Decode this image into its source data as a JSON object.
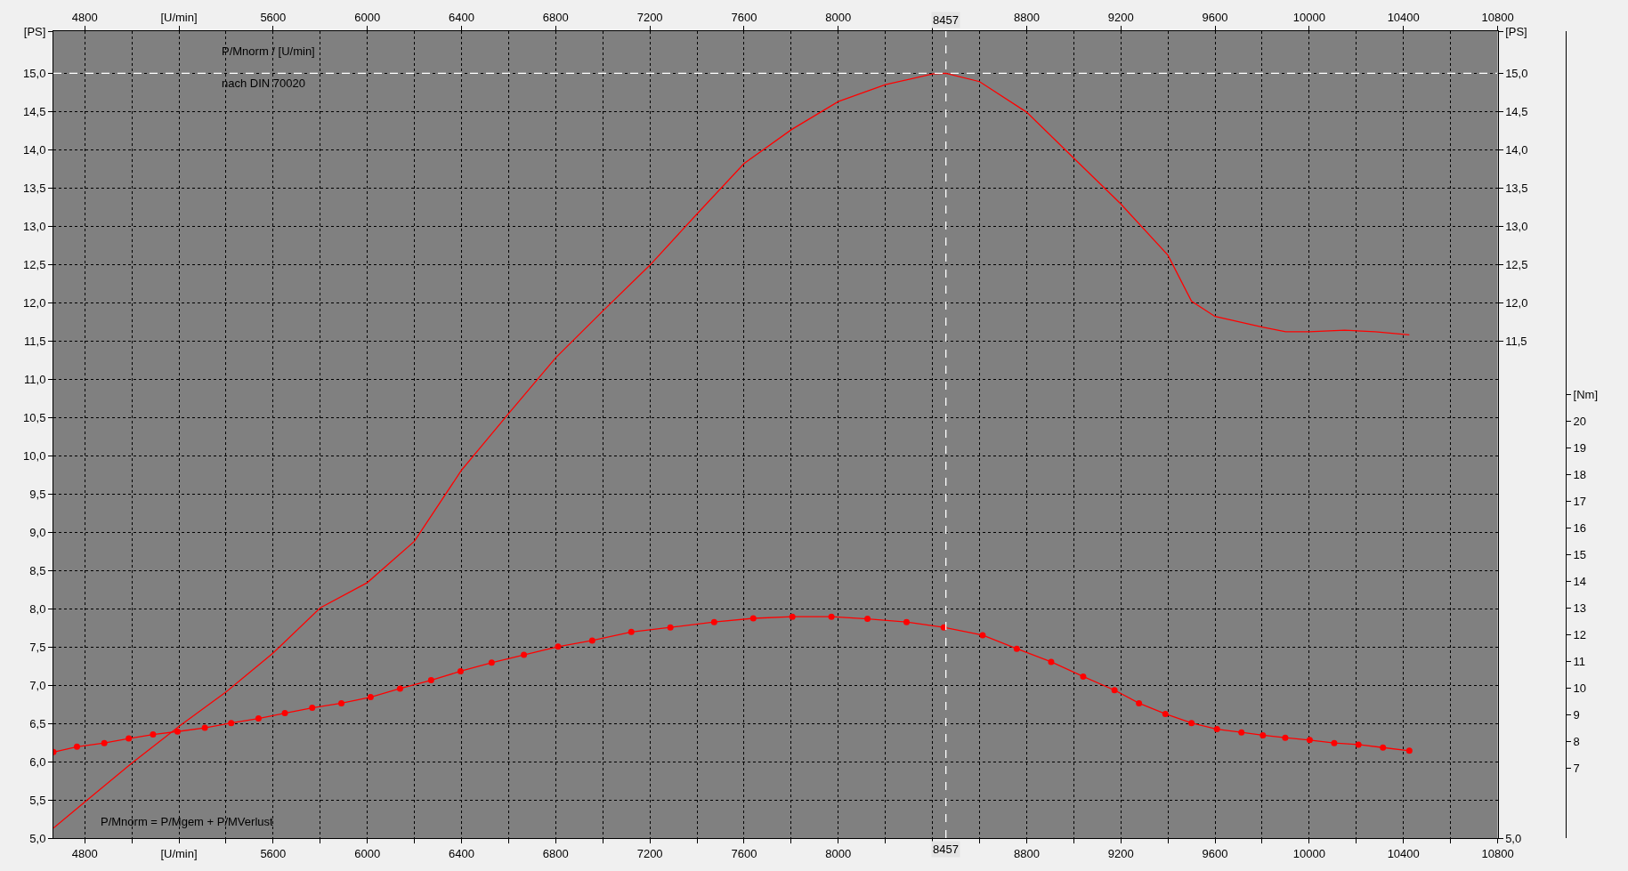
{
  "chart_data": {
    "type": "line",
    "xlim": [
      4667,
      10800
    ],
    "xticks": [
      4800,
      {
        "value": 5000,
        "label": null
      },
      {
        "value": 5200,
        "label": "[U/min]"
      },
      {
        "value": 5400,
        "label": null
      },
      5600,
      {
        "value": 5800,
        "label": null
      },
      6000,
      {
        "value": 6200,
        "label": null
      },
      6400,
      {
        "value": 6600,
        "label": null
      },
      6800,
      {
        "value": 7000,
        "label": null
      },
      7200,
      {
        "value": 7400,
        "label": null
      },
      7600,
      {
        "value": 7800,
        "label": null
      },
      8000,
      {
        "value": 8200,
        "label": null
      },
      {
        "value": 8400,
        "label": null
      },
      {
        "value": 8600,
        "label": null
      },
      8800,
      {
        "value": 9000,
        "label": null
      },
      9200,
      {
        "value": 9400,
        "label": null
      },
      9600,
      {
        "value": 9800,
        "label": null
      },
      10000,
      {
        "value": 10200,
        "label": null
      },
      10400,
      {
        "value": 10600,
        "label": null
      },
      10800
    ],
    "x2lim": [
      4667,
      10800
    ],
    "x2ticks": [
      4800,
      {
        "value": 5200,
        "label": "[U/min]"
      },
      5600,
      6000,
      6400,
      6800,
      7200,
      7600,
      8000,
      {
        "value": 8400,
        "label": null
      },
      8800,
      9200,
      9600,
      10000,
      10400,
      10800
    ],
    "ylim": [
      5,
      15.55
    ],
    "yticks": [
      {
        "value": 5,
        "label": "5,0"
      },
      {
        "value": 5.5,
        "label": "5,5"
      },
      {
        "value": 6,
        "label": "6,0"
      },
      {
        "value": 6.5,
        "label": "6,5"
      },
      {
        "value": 7,
        "label": "7,0"
      },
      {
        "value": 7.5,
        "label": "7,5"
      },
      {
        "value": 8,
        "label": "8,0"
      },
      {
        "value": 8.5,
        "label": "8,5"
      },
      {
        "value": 9,
        "label": "9,0"
      },
      {
        "value": 9.5,
        "label": "9,5"
      },
      {
        "value": 10,
        "label": "10,0"
      },
      {
        "value": 10.5,
        "label": "10,5"
      },
      {
        "value": 11,
        "label": "11,0"
      },
      {
        "value": 11.5,
        "label": "11,5"
      },
      {
        "value": 12,
        "label": "12,0"
      },
      {
        "value": 12.5,
        "label": "12,5"
      },
      {
        "value": 13,
        "label": "13,0"
      },
      {
        "value": 13.5,
        "label": "13,5"
      },
      {
        "value": 14,
        "label": "14,0"
      },
      {
        "value": 14.5,
        "label": "14,5"
      },
      {
        "value": 15,
        "label": "15,0"
      },
      {
        "value": 15.55,
        "label": "[PS]"
      }
    ],
    "y2lim": [
      5,
      15.55
    ],
    "y2ticks": [
      {
        "value": 5,
        "label": "5,0"
      },
      {
        "value": 11.5,
        "label": "11,5"
      },
      {
        "value": 12,
        "label": "12,0"
      },
      {
        "value": 12.5,
        "label": "12,5"
      },
      {
        "value": 13,
        "label": "13,0"
      },
      {
        "value": 13.5,
        "label": "13,5"
      },
      {
        "value": 14,
        "label": "14,0"
      },
      {
        "value": 14.5,
        "label": "14,5"
      },
      {
        "value": 15,
        "label": "15,0"
      },
      {
        "value": 15.55,
        "label": "[PS]"
      }
    ],
    "y3lim": [
      4.39,
      34.61
    ],
    "y3ticks": [
      7,
      8,
      9,
      10,
      11,
      12,
      13,
      14,
      15,
      16,
      17,
      18,
      19,
      20,
      {
        "value": 21,
        "label": "[Nm]"
      }
    ],
    "grid": true,
    "line_style": "solid",
    "series": [
      {
        "color": "#ff0000",
        "marker": "none",
        "x": [
          4667,
          4800,
          5000,
          5200,
          5400,
          5600,
          5800,
          6000,
          6200,
          6400,
          6600,
          6800,
          7000,
          7200,
          7400,
          7600,
          7800,
          8000,
          8200,
          8400,
          8457,
          8600,
          8800,
          9000,
          9200,
          9400,
          9500,
          9600,
          9800,
          9900,
          10000,
          10150,
          10280,
          10425
        ],
        "values": [
          5.13,
          5.47,
          5.98,
          6.46,
          6.91,
          7.42,
          8.01,
          8.34,
          8.88,
          9.81,
          10.55,
          11.28,
          11.89,
          12.49,
          13.16,
          13.82,
          14.26,
          14.63,
          14.85,
          14.99,
          15.0,
          14.89,
          14.49,
          13.89,
          13.29,
          12.62,
          12.02,
          11.82,
          11.68,
          11.62,
          11.62,
          11.64,
          11.62,
          11.58
        ]
      },
      {
        "color": "#ff0000",
        "marker": "circle",
        "axis": "y3",
        "x": [
          4667,
          4767,
          4883,
          4987,
          5090,
          5194,
          5310,
          5422,
          5538,
          5650,
          5766,
          5890,
          6014,
          6139,
          6271,
          6396,
          6528,
          6665,
          6810,
          6955,
          7121,
          7287,
          7473,
          7639,
          7805,
          7971,
          8124,
          8290,
          8448,
          8613,
          8758,
          8904,
          9040,
          9173,
          9277,
          9389,
          9500,
          9608,
          9712,
          9803,
          9898,
          10002,
          10106,
          10209,
          10313,
          10425
        ],
        "values": [
          7.61,
          7.81,
          7.95,
          8.12,
          8.27,
          8.38,
          8.52,
          8.7,
          8.87,
          9.07,
          9.27,
          9.44,
          9.67,
          9.99,
          10.3,
          10.64,
          10.96,
          11.25,
          11.56,
          11.79,
          12.11,
          12.28,
          12.48,
          12.62,
          12.68,
          12.68,
          12.6,
          12.48,
          12.28,
          11.99,
          11.48,
          10.99,
          10.44,
          9.93,
          9.44,
          9.04,
          8.7,
          8.47,
          8.35,
          8.24,
          8.15,
          8.06,
          7.95,
          7.89,
          7.78,
          7.66
        ]
      }
    ],
    "ref_lines": [
      {
        "axis": "x",
        "value": 8457,
        "label": "8457",
        "color": "#ffffff",
        "line_style": "dashed"
      },
      {
        "axis": "y",
        "value": 15.0,
        "color": "#ffffff",
        "line_style": "dashed"
      }
    ],
    "annotations": [
      "P/Mnorm / [U/min]",
      "nach DIN 70020",
      "P/Mnorm = P/Mgem + P/MVerlust"
    ]
  }
}
